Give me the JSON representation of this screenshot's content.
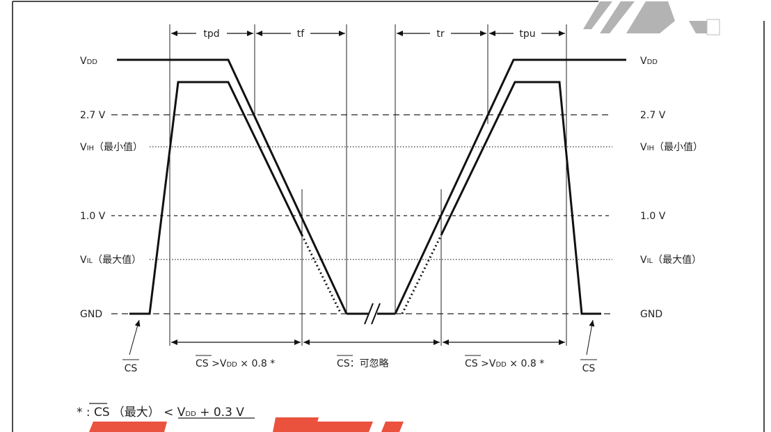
{
  "levels": {
    "vdd": {
      "main": "V",
      "sub": "DD"
    },
    "v27": "2.7 V",
    "vih": {
      "main": "V",
      "sub": "IH",
      "suffix": "（最小值）"
    },
    "v10": "1.0 V",
    "vil": {
      "main": "V",
      "sub": "IL",
      "suffix": "（最大值）"
    },
    "gnd": "GND"
  },
  "timing": {
    "tpd": "tpd",
    "tf": "tf",
    "tr": "tr",
    "tpu": "tpu"
  },
  "regions": {
    "cs": "CS",
    "cs_high_prefix": "CS",
    "cs_high_mid": " >V",
    "cs_high_sub": "DD",
    "cs_high_suffix": " × 0.8 *",
    "cs_ignore_suffix": "：可忽略"
  },
  "footnote": {
    "star": "* : ",
    "cs": "CS",
    "max": "（最大）",
    "lt": " < V",
    "sub": "DD",
    "plus": " + 0.3 V"
  },
  "colors": {
    "accent": "#e8402a",
    "line": "#111111"
  }
}
